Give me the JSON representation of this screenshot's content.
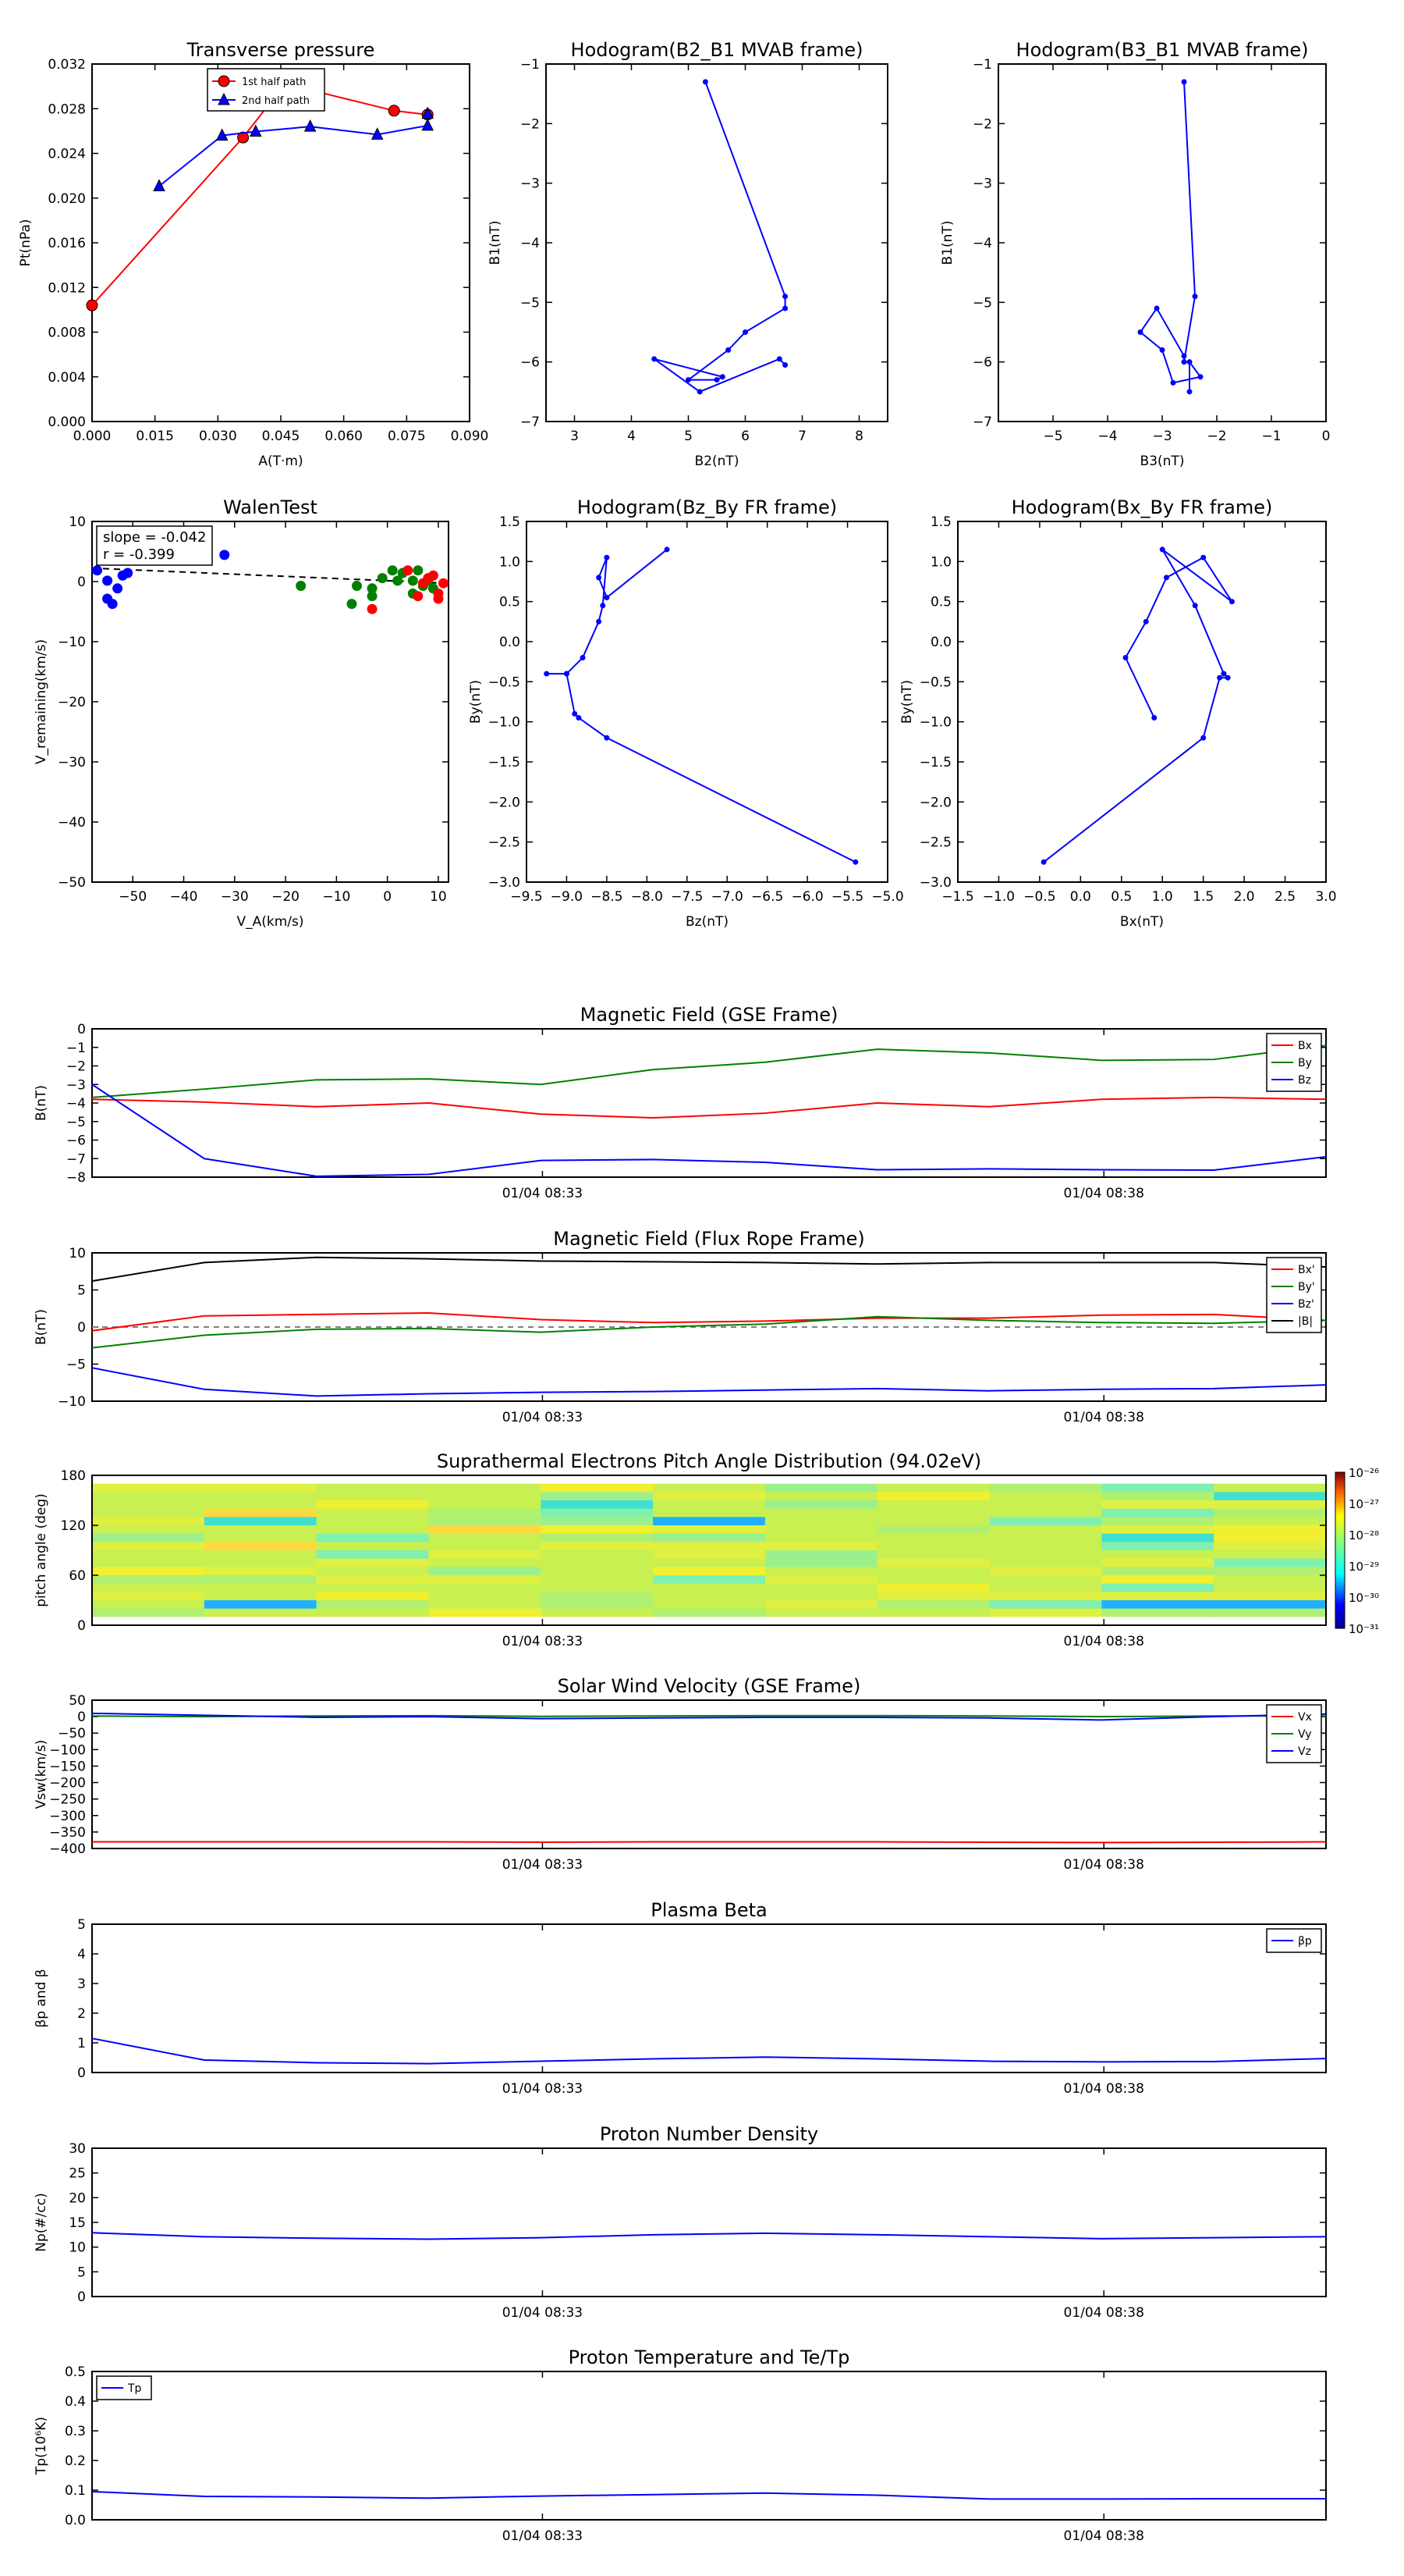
{
  "colors": {
    "red": "#ff0000",
    "green": "#008000",
    "blue": "#0000ff",
    "black": "#000000",
    "gray": "#808080"
  },
  "time_ticks": [
    "01/04 08:33",
    "01/04 08:38"
  ],
  "chart_data": [
    {
      "id": "transverse-pressure",
      "type": "line",
      "title": "Transverse pressure",
      "xlabel": "A(T·m)",
      "ylabel": "Pt(nPa)",
      "xlim": [
        0,
        0.09
      ],
      "ylim": [
        0,
        0.036
      ],
      "xticks": [
        "0.000",
        "0.015",
        "0.030",
        "0.045",
        "0.060",
        "0.075",
        "0.090"
      ],
      "yticks": [
        "0.000",
        "0.004",
        "0.008",
        "0.012",
        "0.016",
        "0.020",
        "0.024",
        "0.028",
        "0.032"
      ],
      "legend": "top-center",
      "series": [
        {
          "name": "1st half path",
          "color": "red",
          "marker": "circle",
          "x": [
            0.0,
            0.036,
            0.046,
            0.072,
            0.08
          ],
          "y": [
            0.0117,
            0.0286,
            0.034,
            0.0313,
            0.0309
          ]
        },
        {
          "name": "2nd half path",
          "color": "blue",
          "marker": "triangle",
          "x": [
            0.016,
            0.031,
            0.039,
            0.052,
            0.068,
            0.08,
            0.08
          ],
          "y": [
            0.0237,
            0.0288,
            0.0292,
            0.0297,
            0.0289,
            0.0298,
            0.031
          ]
        }
      ]
    },
    {
      "id": "hodogram-b2-b1",
      "type": "line",
      "title": "Hodogram(B2_B1 MVAB frame)",
      "xlabel": "B2(nT)",
      "ylabel": "B1(nT)",
      "xlim": [
        2.5,
        8.5
      ],
      "ylim": [
        -7,
        -1
      ],
      "xticks": [
        "3",
        "4",
        "5",
        "6",
        "7",
        "8"
      ],
      "yticks": [
        "−7",
        "−6",
        "−5",
        "−4",
        "−3",
        "−2",
        "−1"
      ],
      "series": [
        {
          "name": "",
          "color": "blue",
          "marker": "dot",
          "x": [
            5.3,
            6.7,
            6.7,
            6.0,
            5.7,
            5.0,
            5.5,
            5.6,
            4.4,
            5.2,
            6.6,
            6.7
          ],
          "y": [
            -1.3,
            -4.9,
            -5.1,
            -5.5,
            -5.8,
            -6.3,
            -6.3,
            -6.25,
            -5.95,
            -6.5,
            -5.95,
            -6.05
          ]
        }
      ]
    },
    {
      "id": "hodogram-b3-b1",
      "type": "line",
      "title": "Hodogram(B3_B1 MVAB frame)",
      "xlabel": "B3(nT)",
      "ylabel": "B1(nT)",
      "xlim": [
        -6,
        0
      ],
      "ylim": [
        -7,
        -1
      ],
      "xticks": [
        "−5",
        "−4",
        "−3",
        "−2",
        "−1",
        "0"
      ],
      "yticks": [
        "−7",
        "−6",
        "−5",
        "−4",
        "−3",
        "−2",
        "−1"
      ],
      "series": [
        {
          "name": "",
          "color": "blue",
          "marker": "dot",
          "x": [
            -2.6,
            -2.4,
            -2.6,
            -2.6,
            -3.1,
            -3.4,
            -3.0,
            -2.8,
            -2.3,
            -2.5,
            -2.5
          ],
          "y": [
            -1.3,
            -4.9,
            -6.0,
            -5.9,
            -5.1,
            -5.5,
            -5.8,
            -6.35,
            -6.25,
            -6.0,
            -6.5
          ]
        }
      ]
    },
    {
      "id": "walen-test",
      "type": "scatter",
      "title": "WalenTest",
      "xlabel": "V_A(km/s)",
      "ylabel": "V_remaining(km/s)",
      "xlim": [
        -58,
        12
      ],
      "ylim": [
        -58,
        12
      ],
      "xticks": [
        "−50",
        "−40",
        "−30",
        "−20",
        "−10",
        "0",
        "10"
      ],
      "yticks": [
        "−50",
        "−40",
        "−30",
        "−20",
        "−10",
        "0",
        "10"
      ],
      "annotation": [
        "slope = -0.042",
        "r = -0.399"
      ],
      "fit": {
        "slope": -0.042,
        "intercept": 0.5
      },
      "series": [
        {
          "name": "",
          "color": "blue",
          "x": [
            -57,
            -55,
            -53,
            -55,
            -54,
            -52,
            -51,
            -32
          ],
          "y": [
            2.5,
            -3,
            -1,
            0.5,
            -4,
            1.5,
            2.0,
            5.5
          ]
        },
        {
          "name": "",
          "color": "green",
          "x": [
            -17,
            -7,
            -6,
            -3,
            -3,
            -1,
            1,
            2,
            3,
            5,
            5,
            6,
            7,
            8,
            9
          ],
          "y": [
            -0.5,
            -4,
            -0.5,
            -1,
            -2.5,
            1,
            2.5,
            0.5,
            2,
            0.5,
            -2,
            2.5,
            -0.5,
            0.5,
            -1
          ]
        },
        {
          "name": "",
          "color": "red",
          "x": [
            -3,
            4,
            6,
            7,
            8,
            9,
            10,
            10,
            11
          ],
          "y": [
            -5,
            2.5,
            -2.5,
            0,
            1,
            1.5,
            -2,
            -3,
            0
          ]
        }
      ]
    },
    {
      "id": "hodogram-bz-by",
      "type": "line",
      "title": "Hodogram(Bz_By FR frame)",
      "xlabel": "Bz(nT)",
      "ylabel": "By(nT)",
      "xlim": [
        -9.5,
        -5.0
      ],
      "ylim": [
        -3.0,
        1.5
      ],
      "xticks": [
        "−9.5",
        "−9.0",
        "−8.5",
        "−8.0",
        "−7.5",
        "−7.0",
        "−6.5",
        "−6.0",
        "−5.5",
        "−5.0"
      ],
      "yticks": [
        "−3.0",
        "−2.5",
        "−2.0",
        "−1.5",
        "−1.0",
        "−0.5",
        "0.0",
        "0.5",
        "1.0",
        "1.5"
      ],
      "series": [
        {
          "name": "",
          "color": "blue",
          "marker": "dot",
          "x": [
            -5.4,
            -8.5,
            -8.85,
            -8.9,
            -9.0,
            -9.25,
            -9.0,
            -8.8,
            -8.6,
            -8.55,
            -8.5,
            -8.6,
            -8.5,
            -7.75
          ],
          "y": [
            -2.75,
            -1.2,
            -0.95,
            -0.9,
            -0.4,
            -0.4,
            -0.4,
            -0.2,
            0.25,
            0.45,
            1.05,
            0.8,
            0.55,
            1.15
          ]
        }
      ]
    },
    {
      "id": "hodogram-bx-by",
      "type": "line",
      "title": "Hodogram(Bx_By FR frame)",
      "xlabel": "Bx(nT)",
      "ylabel": "By(nT)",
      "xlim": [
        -1.5,
        3.0
      ],
      "ylim": [
        -3.0,
        1.5
      ],
      "xticks": [
        "−1.5",
        "−1.0",
        "−0.5",
        "0.0",
        "0.5",
        "1.0",
        "1.5",
        "2.0",
        "2.5",
        "3.0"
      ],
      "yticks": [
        "−3.0",
        "−2.5",
        "−2.0",
        "−1.5",
        "−1.0",
        "−0.5",
        "0.0",
        "0.5",
        "1.0",
        "1.5"
      ],
      "series": [
        {
          "name": "",
          "color": "blue",
          "marker": "dot",
          "x": [
            -0.45,
            1.5,
            1.7,
            1.8,
            1.75,
            1.75,
            1.4,
            1.0,
            1.85,
            1.5,
            1.05,
            0.8,
            0.55,
            0.9
          ],
          "y": [
            -2.75,
            -1.2,
            -0.45,
            -0.45,
            -0.4,
            -0.4,
            0.45,
            1.15,
            0.5,
            1.05,
            0.8,
            0.25,
            -0.2,
            -0.95
          ]
        }
      ]
    },
    {
      "id": "mag-field-gse",
      "type": "line",
      "title": "Magnetic Field (GSE Frame)",
      "xlabel": "",
      "ylabel": "B(nT)",
      "ylim": [
        -8,
        0
      ],
      "yticks": [
        "−8",
        "−7",
        "−6",
        "−5",
        "−4",
        "−3",
        "−2",
        "−1",
        "0"
      ],
      "legend": "right",
      "series": [
        {
          "name": "Bx",
          "color": "red",
          "values": [
            -3.8,
            -3.95,
            -4.2,
            -4.0,
            -4.6,
            -4.8,
            -4.55,
            -4.0,
            -4.2,
            -3.8,
            -3.7,
            -3.8
          ]
        },
        {
          "name": "By",
          "color": "green",
          "values": [
            -3.7,
            -3.25,
            -2.75,
            -2.7,
            -3.0,
            -2.2,
            -1.8,
            -1.1,
            -1.3,
            -1.7,
            -1.65,
            -0.9
          ]
        },
        {
          "name": "Bz",
          "color": "blue",
          "values": [
            -3.0,
            -7.0,
            -7.95,
            -7.85,
            -7.1,
            -7.05,
            -7.2,
            -7.6,
            -7.55,
            -7.6,
            -7.62,
            -6.9
          ]
        }
      ]
    },
    {
      "id": "mag-field-fr",
      "type": "line",
      "title": "Magnetic Field (Flux Rope Frame)",
      "xlabel": "",
      "ylabel": "B(nT)",
      "ylim": [
        -10,
        10
      ],
      "yticks": [
        "−10",
        "−5",
        "0",
        "5",
        "10"
      ],
      "legend": "right",
      "zero_line": true,
      "series": [
        {
          "name": "Bx'",
          "color": "red",
          "values": [
            -0.5,
            1.5,
            1.7,
            1.9,
            1.0,
            0.6,
            0.8,
            1.2,
            1.2,
            1.6,
            1.7,
            0.9
          ]
        },
        {
          "name": "By'",
          "color": "green",
          "values": [
            -2.8,
            -1.1,
            -0.3,
            -0.2,
            -0.7,
            0.0,
            0.4,
            1.4,
            0.9,
            0.6,
            0.5,
            0.9
          ]
        },
        {
          "name": "Bz'",
          "color": "blue",
          "values": [
            -5.5,
            -8.4,
            -9.3,
            -9.0,
            -8.8,
            -8.7,
            -8.5,
            -8.3,
            -8.6,
            -8.4,
            -8.3,
            -7.8
          ]
        },
        {
          "name": "|B|",
          "color": "black",
          "values": [
            6.2,
            8.7,
            9.4,
            9.2,
            8.9,
            8.8,
            8.7,
            8.5,
            8.7,
            8.7,
            8.7,
            8.1
          ]
        }
      ]
    },
    {
      "id": "pitch-angle",
      "type": "heatmap",
      "title": "Suprathermal Electrons Pitch Angle Distribution (94.02eV)",
      "xlabel": "",
      "ylabel": "pitch angle (deg)",
      "ylim": [
        0,
        180
      ],
      "yticks": [
        "0",
        "60",
        "120",
        "180"
      ],
      "colorbar": [
        "10⁻³¹",
        "10⁻³⁰",
        "10⁻²⁹",
        "10⁻²⁸",
        "10⁻²⁷",
        "10⁻²⁶"
      ],
      "columns": 11,
      "rows": 18
    },
    {
      "id": "solar-wind",
      "type": "line",
      "title": "Solar Wind Velocity (GSE Frame)",
      "xlabel": "",
      "ylabel": "Vsw(km/s)",
      "ylim": [
        -400,
        50
      ],
      "yticks": [
        "−400",
        "−350",
        "−300",
        "−250",
        "−200",
        "−150",
        "−100",
        "−50",
        "0",
        "50"
      ],
      "legend": "right",
      "series": [
        {
          "name": "Vx",
          "color": "red",
          "values": [
            -380,
            -380,
            -380,
            -380,
            -381,
            -380,
            -380,
            -380,
            -381,
            -382,
            -381,
            -380
          ]
        },
        {
          "name": "Vy",
          "color": "green",
          "values": [
            2,
            0,
            2,
            3,
            1,
            2,
            3,
            3,
            2,
            0,
            2,
            2
          ]
        },
        {
          "name": "Vz",
          "color": "blue",
          "values": [
            10,
            4,
            -2,
            0,
            -6,
            -4,
            -2,
            -2,
            -4,
            -10,
            0,
            8
          ]
        }
      ]
    },
    {
      "id": "plasma-beta",
      "type": "line",
      "title": "Plasma Beta",
      "xlabel": "",
      "ylabel": "βp and β",
      "ylim": [
        0,
        5
      ],
      "yticks": [
        "0",
        "1",
        "2",
        "3",
        "4",
        "5"
      ],
      "legend": "top-right",
      "series": [
        {
          "name": "βp",
          "color": "blue",
          "values": [
            1.15,
            0.42,
            0.33,
            0.3,
            0.38,
            0.46,
            0.52,
            0.46,
            0.38,
            0.36,
            0.37,
            0.47
          ]
        }
      ]
    },
    {
      "id": "proton-density",
      "type": "line",
      "title": "Proton Number Density",
      "xlabel": "",
      "ylabel": "Np(#/cc)",
      "ylim": [
        0,
        30
      ],
      "yticks": [
        "0",
        "5",
        "10",
        "15",
        "20",
        "25",
        "30"
      ],
      "series": [
        {
          "name": "",
          "color": "blue",
          "values": [
            12.9,
            12.1,
            11.8,
            11.6,
            11.9,
            12.5,
            12.8,
            12.5,
            12.1,
            11.7,
            11.9,
            12.1
          ]
        }
      ]
    },
    {
      "id": "proton-temp",
      "type": "line",
      "title": "Proton Temperature and Te/Tp",
      "xlabel": "",
      "ylabel": "Tp(10⁶K)",
      "ylim": [
        0,
        0.5
      ],
      "yticks": [
        "0.0",
        "0.1",
        "0.2",
        "0.3",
        "0.4",
        "0.5"
      ],
      "legend": "top-left",
      "series": [
        {
          "name": "Tp",
          "color": "blue",
          "values": [
            0.095,
            0.079,
            0.077,
            0.073,
            0.08,
            0.085,
            0.09,
            0.083,
            0.07,
            0.07,
            0.071,
            0.071
          ]
        }
      ]
    }
  ]
}
